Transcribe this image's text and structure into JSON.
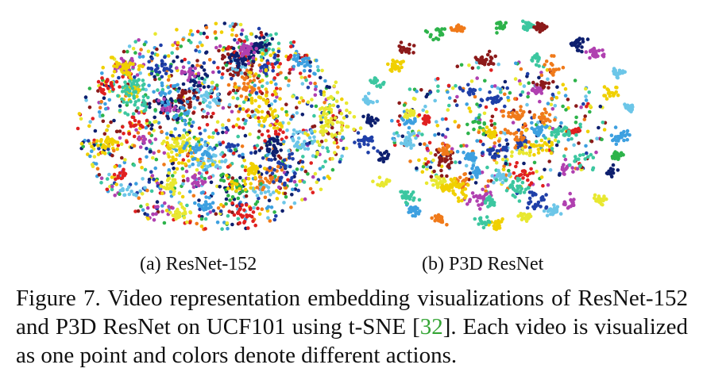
{
  "figure": {
    "subcaptions": [
      "(a) ResNet-152",
      "(b) P3D ResNet"
    ],
    "caption": {
      "prefix": "Figure 7. Video representation embedding visualizations of ResNet-152 and P3D ResNet on UCF101 using t-SNE [",
      "citation": "32",
      "suffix": "]. Each video is visualized as one point and colors denote different actions."
    }
  },
  "chart_data": [
    {
      "type": "scatter",
      "title": "(a) ResNet-152",
      "xlabel": "",
      "ylabel": "",
      "grid": false,
      "axes_visible": false,
      "point_count_estimate": 3000,
      "note_structure": "diffuse, heavily overlapping point cloud with few tight clusters",
      "colors": [
        "#1f3fa8",
        "#0d1f6e",
        "#3da0e0",
        "#6cc6e8",
        "#e02020",
        "#f07a1a",
        "#f0d000",
        "#e8e830",
        "#3cc7a0",
        "#2db34a",
        "#8c1a1a",
        "#b040b0"
      ]
    },
    {
      "type": "scatter",
      "title": "(b) P3D ResNet",
      "xlabel": "",
      "ylabel": "",
      "grid": false,
      "axes_visible": false,
      "point_count_estimate": 3000,
      "note_structure": "compact, well-separated clusters per action class around the periphery",
      "colors": [
        "#1f3fa8",
        "#0d1f6e",
        "#3da0e0",
        "#6cc6e8",
        "#e02020",
        "#f07a1a",
        "#f0d000",
        "#e8e830",
        "#3cc7a0",
        "#2db34a",
        "#8c1a1a",
        "#b040b0"
      ]
    }
  ]
}
